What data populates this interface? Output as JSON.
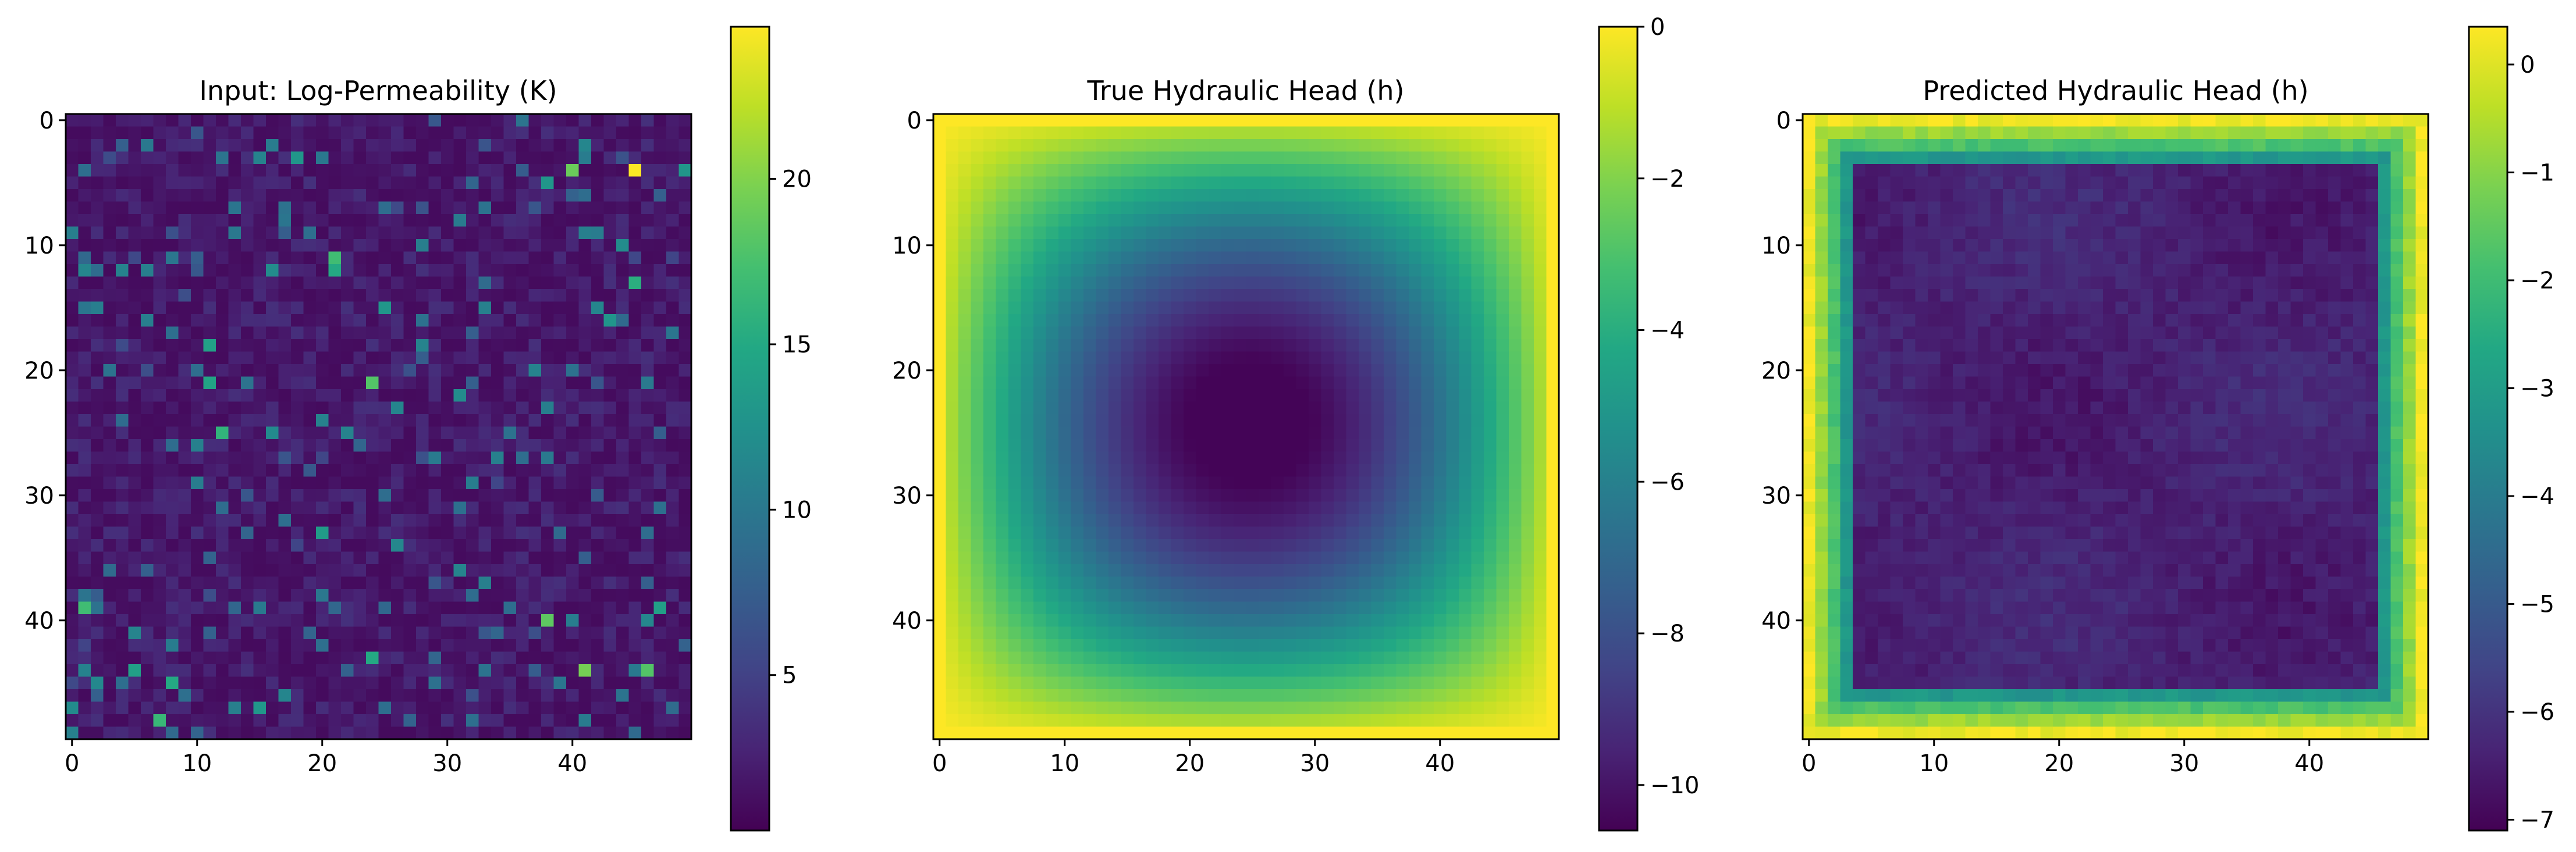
{
  "chart_data": [
    {
      "type": "heatmap",
      "title": "Input: Log-Permeability (K)",
      "grid_size": [
        50,
        50
      ],
      "xlim": [
        -0.5,
        49.5
      ],
      "ylim": [
        49.5,
        -0.5
      ],
      "x_ticks": [
        0,
        10,
        20,
        30,
        40
      ],
      "y_ticks": [
        0,
        10,
        20,
        30,
        40
      ],
      "colorscale": "viridis",
      "zmin": 0.3,
      "zmax": 24.6,
      "colorbar_ticks": [
        5,
        10,
        15,
        20
      ],
      "field": {
        "description": "random lognormal-like noise, background ~1-3",
        "background_mean": 2.2,
        "hotspots": [
          {
            "row": 4,
            "col": 45,
            "value": 24.5
          },
          {
            "row": 4,
            "col": 40,
            "value": 19.0
          },
          {
            "row": 11,
            "col": 21,
            "value": 17.0
          },
          {
            "row": 12,
            "col": 21,
            "value": 15.0
          },
          {
            "row": 18,
            "col": 11,
            "value": 14.0
          },
          {
            "row": 21,
            "col": 24,
            "value": 18.0
          },
          {
            "row": 21,
            "col": 11,
            "value": 14.5
          },
          {
            "row": 25,
            "col": 12,
            "value": 16.0
          },
          {
            "row": 39,
            "col": 1,
            "value": 17.0
          },
          {
            "row": 40,
            "col": 38,
            "value": 18.5
          },
          {
            "row": 44,
            "col": 41,
            "value": 19.5
          },
          {
            "row": 44,
            "col": 46,
            "value": 18.0
          },
          {
            "row": 44,
            "col": 5,
            "value": 14.0
          },
          {
            "row": 45,
            "col": 8,
            "value": 15.0
          },
          {
            "row": 48,
            "col": 7,
            "value": 16.5
          },
          {
            "row": 43,
            "col": 24,
            "value": 15.0
          },
          {
            "row": 10,
            "col": 44,
            "value": 12.0
          },
          {
            "row": 15,
            "col": 25,
            "value": 13.0
          },
          {
            "row": 3,
            "col": 18,
            "value": 13.0
          },
          {
            "row": 39,
            "col": 47,
            "value": 14.0
          },
          {
            "row": 4,
            "col": 49,
            "value": 13.0
          },
          {
            "row": 13,
            "col": 45,
            "value": 15.5
          }
        ]
      }
    },
    {
      "type": "heatmap",
      "title": "True Hydraulic Head (h)",
      "grid_size": [
        50,
        50
      ],
      "xlim": [
        -0.5,
        49.5
      ],
      "ylim": [
        49.5,
        -0.5
      ],
      "x_ticks": [
        0,
        10,
        20,
        30,
        40
      ],
      "y_ticks": [
        0,
        10,
        20,
        30,
        40
      ],
      "colorscale": "viridis",
      "zmin": -10.6,
      "zmax": 0,
      "colorbar_ticks": [
        0,
        -2,
        -4,
        -6,
        -8,
        -10
      ],
      "field": {
        "description": "h=0 on boundary, smooth bowl with minimum ~-10.5 near row 22, col 27",
        "boundary_value": 0,
        "min_value": -10.5,
        "min_location": {
          "row": 22,
          "col": 27
        }
      }
    },
    {
      "type": "heatmap",
      "title": "Predicted Hydraulic Head (h)",
      "grid_size": [
        50,
        50
      ],
      "xlim": [
        -0.5,
        49.5
      ],
      "ylim": [
        49.5,
        -0.5
      ],
      "x_ticks": [
        0,
        10,
        20,
        30,
        40
      ],
      "y_ticks": [
        0,
        10,
        20,
        30,
        40
      ],
      "colorscale": "viridis",
      "zmin": -7.1,
      "zmax": 0.35,
      "colorbar_ticks": [
        0,
        -1,
        -2,
        -3,
        -4,
        -5,
        -6,
        -7
      ],
      "field": {
        "description": "thin bright frame (about 0 to -3) along outer 4 cells, flat interior about -6.3 with mild noise",
        "frame_width": 4,
        "frame_values": [
          0.2,
          -0.8,
          -1.8,
          -3.2
        ],
        "interior_value": -6.4
      }
    }
  ]
}
